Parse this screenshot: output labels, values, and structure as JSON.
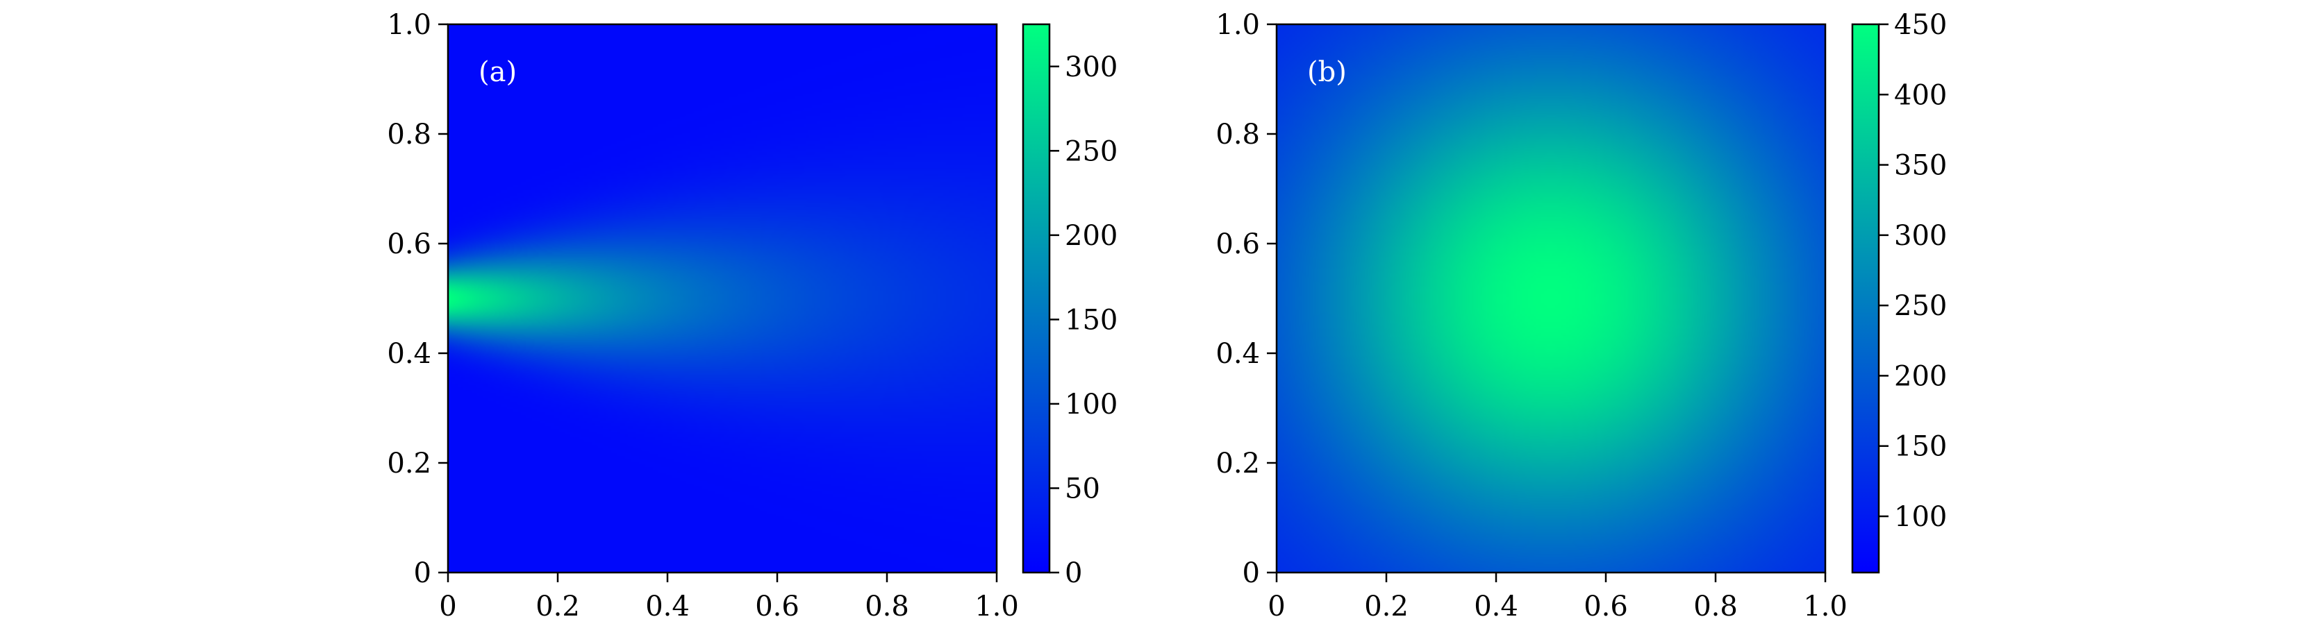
{
  "chart_data": [
    {
      "type": "heatmap",
      "panel_label": "(a)",
      "description_free": true,
      "x_ticks": [
        "0",
        "0.2",
        "0.4",
        "0.6",
        "0.8",
        "1.0"
      ],
      "y_ticks": [
        "0",
        "0.2",
        "0.4",
        "0.6",
        "0.8",
        "1.0"
      ],
      "xlim": [
        0,
        1
      ],
      "ylim": [
        0,
        1
      ],
      "colorbar": {
        "min": 0,
        "max": 325,
        "ticks": [
          "0",
          "50",
          "100",
          "150",
          "200",
          "250",
          "300"
        ],
        "colors": [
          "#0000ff",
          "#00ff80"
        ]
      },
      "field": {
        "kind": "jet_from_left_edge",
        "peak_value": 325,
        "peak_at": [
          0,
          0.5
        ],
        "background": 10
      }
    },
    {
      "type": "heatmap",
      "panel_label": "(b)",
      "x_ticks": [
        "0",
        "0.2",
        "0.4",
        "0.6",
        "0.8",
        "1.0"
      ],
      "y_ticks": [
        "0",
        "0.2",
        "0.4",
        "0.6",
        "0.8",
        "1.0"
      ],
      "xlim": [
        0,
        1
      ],
      "ylim": [
        0,
        1
      ],
      "colorbar": {
        "min": 60,
        "max": 450,
        "ticks": [
          "100",
          "150",
          "200",
          "250",
          "300",
          "350",
          "400",
          "450"
        ],
        "colors": [
          "#0000ff",
          "#00ff80"
        ]
      },
      "field": {
        "kind": "central_peak",
        "peak_value": 450,
        "peak_at": [
          0.5,
          0.5
        ],
        "corner_value": 100
      }
    }
  ]
}
